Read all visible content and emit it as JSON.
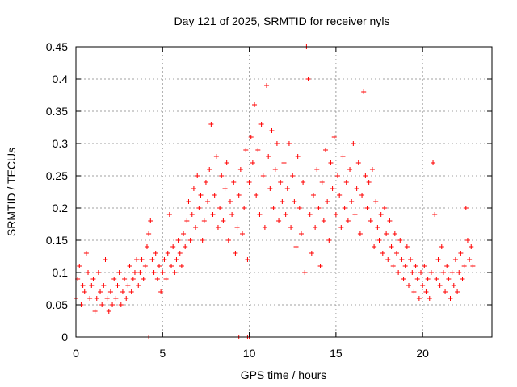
{
  "chart_data": {
    "type": "scatter",
    "title": "Day 121 of 2025, SRMTID for receiver nyls",
    "xlabel": "GPS time / hours",
    "ylabel": "SRMTID / TECUs",
    "xlim": [
      0,
      24
    ],
    "ylim": [
      0,
      0.45
    ],
    "xticks": [
      0,
      5,
      10,
      15,
      20
    ],
    "yticks": [
      0,
      0.05,
      0.1,
      0.15,
      0.2,
      0.25,
      0.3,
      0.35,
      0.4,
      0.45
    ],
    "xtick_labels": [
      "0",
      "5",
      "10",
      "15",
      "20"
    ],
    "ytick_labels": [
      "0",
      "0.05",
      "0.1",
      "0.15",
      "0.2",
      "0.25",
      "0.3",
      "0.35",
      "0.4",
      "0.45"
    ],
    "grid": true,
    "marker": "+",
    "color": "#ff0000",
    "series": [
      {
        "name": "SRMTID",
        "points": [
          [
            0.0,
            0.06
          ],
          [
            0.1,
            0.09
          ],
          [
            0.2,
            0.11
          ],
          [
            0.3,
            0.05
          ],
          [
            0.4,
            0.08
          ],
          [
            0.5,
            0.07
          ],
          [
            0.6,
            0.13
          ],
          [
            0.7,
            0.1
          ],
          [
            0.8,
            0.06
          ],
          [
            0.9,
            0.08
          ],
          [
            1.0,
            0.09
          ],
          [
            1.1,
            0.04
          ],
          [
            1.2,
            0.06
          ],
          [
            1.3,
            0.1
          ],
          [
            1.4,
            0.07
          ],
          [
            1.5,
            0.05
          ],
          [
            1.6,
            0.08
          ],
          [
            1.7,
            0.12
          ],
          [
            1.8,
            0.06
          ],
          [
            1.9,
            0.04
          ],
          [
            2.0,
            0.07
          ],
          [
            2.1,
            0.05
          ],
          [
            2.2,
            0.09
          ],
          [
            2.3,
            0.06
          ],
          [
            2.4,
            0.08
          ],
          [
            2.5,
            0.1
          ],
          [
            2.6,
            0.05
          ],
          [
            2.7,
            0.07
          ],
          [
            2.8,
            0.09
          ],
          [
            2.9,
            0.06
          ],
          [
            3.0,
            0.08
          ],
          [
            3.1,
            0.11
          ],
          [
            3.2,
            0.07
          ],
          [
            3.3,
            0.09
          ],
          [
            3.4,
            0.1
          ],
          [
            3.5,
            0.12
          ],
          [
            3.6,
            0.08
          ],
          [
            3.7,
            0.1
          ],
          [
            3.8,
            0.12
          ],
          [
            3.9,
            0.09
          ],
          [
            4.0,
            0.11
          ],
          [
            4.1,
            0.14
          ],
          [
            4.2,
            0.16
          ],
          [
            4.3,
            0.18
          ],
          [
            4.4,
            0.12
          ],
          [
            4.5,
            0.1
          ],
          [
            4.6,
            0.13
          ],
          [
            4.7,
            0.09
          ],
          [
            4.8,
            0.11
          ],
          [
            4.9,
            0.07
          ],
          [
            5.0,
            0.1
          ],
          [
            5.1,
            0.12
          ],
          [
            5.2,
            0.09
          ],
          [
            5.3,
            0.13
          ],
          [
            5.4,
            0.19
          ],
          [
            5.5,
            0.11
          ],
          [
            5.6,
            0.14
          ],
          [
            5.7,
            0.1
          ],
          [
            5.8,
            0.12
          ],
          [
            5.9,
            0.15
          ],
          [
            6.0,
            0.13
          ],
          [
            6.1,
            0.11
          ],
          [
            6.2,
            0.16
          ],
          [
            6.3,
            0.14
          ],
          [
            6.4,
            0.18
          ],
          [
            6.5,
            0.21
          ],
          [
            6.6,
            0.15
          ],
          [
            6.7,
            0.19
          ],
          [
            6.8,
            0.23
          ],
          [
            6.9,
            0.17
          ],
          [
            7.0,
            0.25
          ],
          [
            7.1,
            0.2
          ],
          [
            7.2,
            0.22
          ],
          [
            7.3,
            0.15
          ],
          [
            7.4,
            0.18
          ],
          [
            7.5,
            0.24
          ],
          [
            7.6,
            0.21
          ],
          [
            7.7,
            0.26
          ],
          [
            7.8,
            0.33
          ],
          [
            7.9,
            0.19
          ],
          [
            8.0,
            0.22
          ],
          [
            8.1,
            0.28
          ],
          [
            8.2,
            0.17
          ],
          [
            8.3,
            0.2
          ],
          [
            8.4,
            0.25
          ],
          [
            8.5,
            0.18
          ],
          [
            8.6,
            0.23
          ],
          [
            8.7,
            0.27
          ],
          [
            8.8,
            0.15
          ],
          [
            8.9,
            0.21
          ],
          [
            9.0,
            0.19
          ],
          [
            9.1,
            0.24
          ],
          [
            9.2,
            0.13
          ],
          [
            9.3,
            0.17
          ],
          [
            9.4,
            0.22
          ],
          [
            9.5,
            0.26
          ],
          [
            9.6,
            0.16
          ],
          [
            9.7,
            0.2
          ],
          [
            9.8,
            0.29
          ],
          [
            9.9,
            0.12
          ],
          [
            10.0,
            0.24
          ],
          [
            10.1,
            0.31
          ],
          [
            10.2,
            0.27
          ],
          [
            10.3,
            0.36
          ],
          [
            10.4,
            0.22
          ],
          [
            10.5,
            0.29
          ],
          [
            10.6,
            0.19
          ],
          [
            10.7,
            0.33
          ],
          [
            10.8,
            0.25
          ],
          [
            10.9,
            0.17
          ],
          [
            11.0,
            0.39
          ],
          [
            11.1,
            0.28
          ],
          [
            11.2,
            0.23
          ],
          [
            11.3,
            0.32
          ],
          [
            11.4,
            0.2
          ],
          [
            11.5,
            0.26
          ],
          [
            11.6,
            0.3
          ],
          [
            11.7,
            0.18
          ],
          [
            11.8,
            0.24
          ],
          [
            11.9,
            0.21
          ],
          [
            12.0,
            0.27
          ],
          [
            12.1,
            0.19
          ],
          [
            12.2,
            0.23
          ],
          [
            12.3,
            0.3
          ],
          [
            12.4,
            0.17
          ],
          [
            12.5,
            0.25
          ],
          [
            12.6,
            0.21
          ],
          [
            12.7,
            0.14
          ],
          [
            12.8,
            0.28
          ],
          [
            12.9,
            0.2
          ],
          [
            13.0,
            0.16
          ],
          [
            13.1,
            0.24
          ],
          [
            13.2,
            0.1
          ],
          [
            13.3,
            0.45
          ],
          [
            13.4,
            0.4
          ],
          [
            13.5,
            0.19
          ],
          [
            13.6,
            0.13
          ],
          [
            13.7,
            0.22
          ],
          [
            13.8,
            0.17
          ],
          [
            13.9,
            0.26
          ],
          [
            14.0,
            0.2
          ],
          [
            14.1,
            0.11
          ],
          [
            14.2,
            0.24
          ],
          [
            14.3,
            0.18
          ],
          [
            14.4,
            0.29
          ],
          [
            14.5,
            0.21
          ],
          [
            14.6,
            0.15
          ],
          [
            14.7,
            0.27
          ],
          [
            14.8,
            0.23
          ],
          [
            14.9,
            0.31
          ],
          [
            15.0,
            0.19
          ],
          [
            15.1,
            0.25
          ],
          [
            15.2,
            0.22
          ],
          [
            15.3,
            0.17
          ],
          [
            15.4,
            0.28
          ],
          [
            15.5,
            0.2
          ],
          [
            15.6,
            0.24
          ],
          [
            15.7,
            0.18
          ],
          [
            15.8,
            0.26
          ],
          [
            15.9,
            0.21
          ],
          [
            16.0,
            0.3
          ],
          [
            16.1,
            0.19
          ],
          [
            16.2,
            0.23
          ],
          [
            16.3,
            0.27
          ],
          [
            16.4,
            0.16
          ],
          [
            16.5,
            0.22
          ],
          [
            16.6,
            0.38
          ],
          [
            16.7,
            0.25
          ],
          [
            16.8,
            0.2
          ],
          [
            16.9,
            0.24
          ],
          [
            17.0,
            0.18
          ],
          [
            17.1,
            0.26
          ],
          [
            17.2,
            0.14
          ],
          [
            17.3,
            0.21
          ],
          [
            17.4,
            0.17
          ],
          [
            17.5,
            0.15
          ],
          [
            17.6,
            0.19
          ],
          [
            17.7,
            0.13
          ],
          [
            17.8,
            0.2
          ],
          [
            17.9,
            0.16
          ],
          [
            18.0,
            0.12
          ],
          [
            18.1,
            0.18
          ],
          [
            18.2,
            0.14
          ],
          [
            18.3,
            0.11
          ],
          [
            18.4,
            0.16
          ],
          [
            18.5,
            0.13
          ],
          [
            18.6,
            0.1
          ],
          [
            18.7,
            0.15
          ],
          [
            18.8,
            0.12
          ],
          [
            18.9,
            0.09
          ],
          [
            19.0,
            0.11
          ],
          [
            19.1,
            0.14
          ],
          [
            19.2,
            0.08
          ],
          [
            19.3,
            0.12
          ],
          [
            19.4,
            0.1
          ],
          [
            19.5,
            0.07
          ],
          [
            19.6,
            0.11
          ],
          [
            19.7,
            0.09
          ],
          [
            19.8,
            0.06
          ],
          [
            19.9,
            0.1
          ],
          [
            20.0,
            0.08
          ],
          [
            20.1,
            0.11
          ],
          [
            20.2,
            0.07
          ],
          [
            20.3,
            0.09
          ],
          [
            20.4,
            0.06
          ],
          [
            20.5,
            0.1
          ],
          [
            20.6,
            0.27
          ],
          [
            20.7,
            0.19
          ],
          [
            20.8,
            0.09
          ],
          [
            20.9,
            0.12
          ],
          [
            21.0,
            0.08
          ],
          [
            21.1,
            0.14
          ],
          [
            21.2,
            0.1
          ],
          [
            21.3,
            0.07
          ],
          [
            21.4,
            0.11
          ],
          [
            21.5,
            0.09
          ],
          [
            21.6,
            0.06
          ],
          [
            21.7,
            0.1
          ],
          [
            21.8,
            0.08
          ],
          [
            21.9,
            0.12
          ],
          [
            22.0,
            0.07
          ],
          [
            22.1,
            0.1
          ],
          [
            22.2,
            0.13
          ],
          [
            22.3,
            0.09
          ],
          [
            22.4,
            0.11
          ],
          [
            22.5,
            0.2
          ],
          [
            22.6,
            0.15
          ],
          [
            22.7,
            0.12
          ],
          [
            22.8,
            0.14
          ],
          [
            22.9,
            0.11
          ],
          [
            9.4,
            0.0
          ],
          [
            9.9,
            0.0
          ],
          [
            10.0,
            0.0
          ],
          [
            4.2,
            0.0
          ]
        ]
      }
    ]
  }
}
